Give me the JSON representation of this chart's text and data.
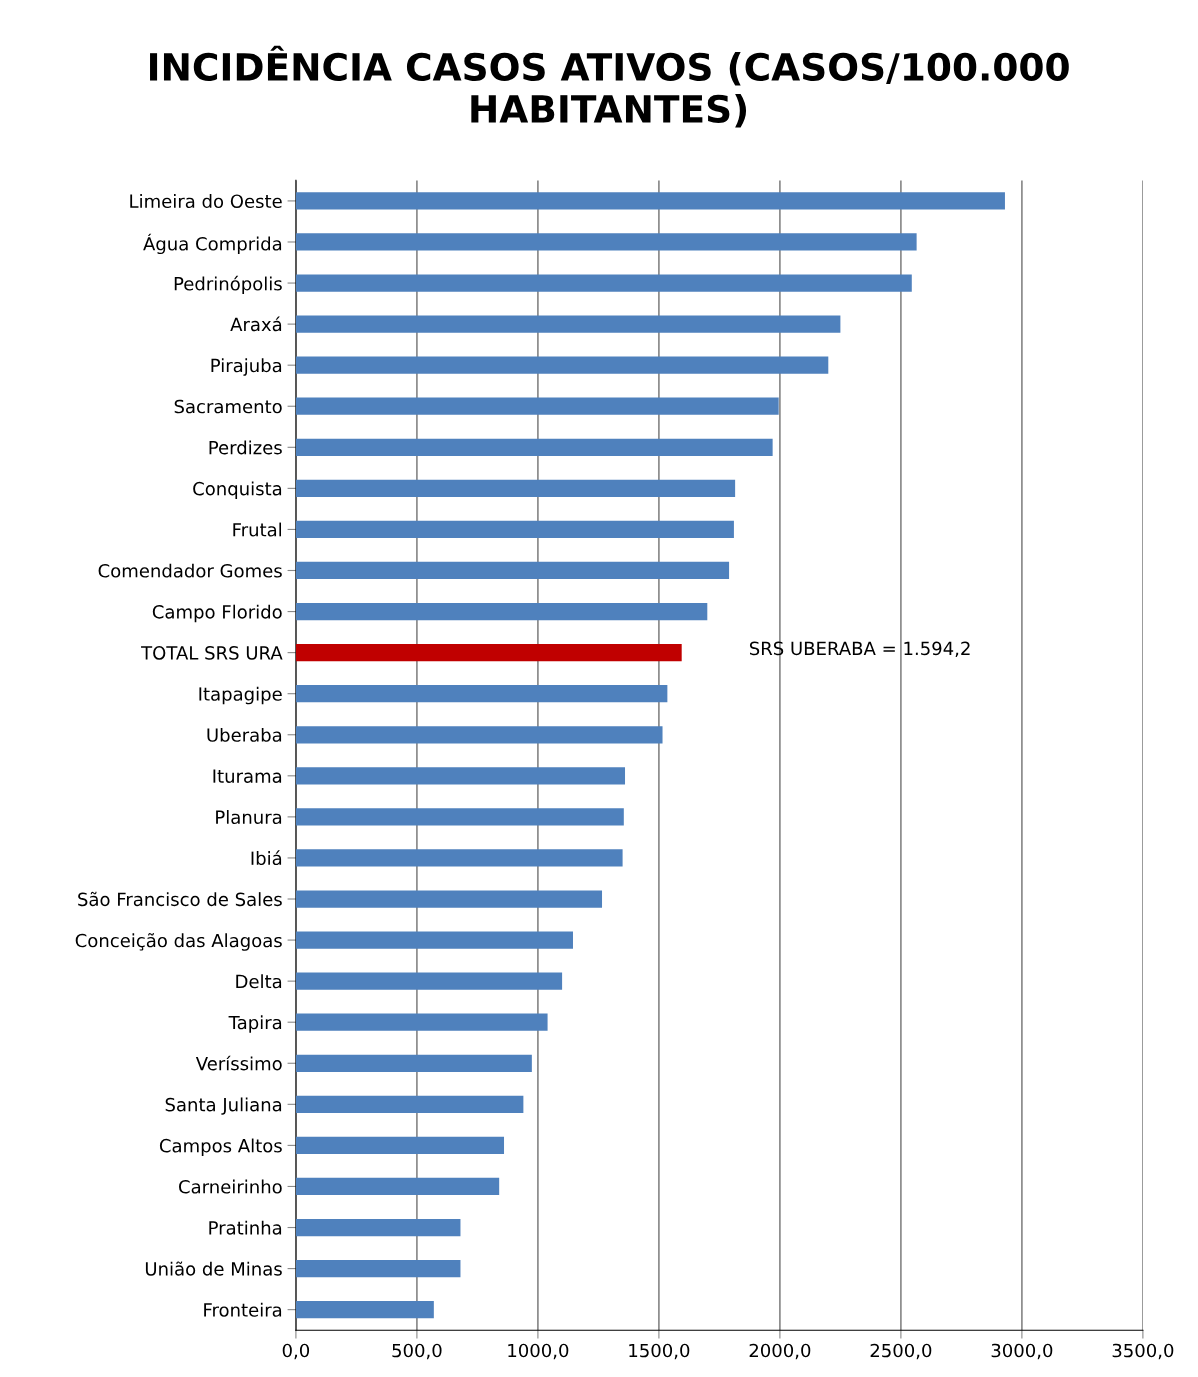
{
  "chart_data": {
    "type": "bar",
    "orientation": "horizontal",
    "title": "INCIDÊNCIA CASOS ATIVOS (CASOS/100.000 HABITANTES)",
    "categories": [
      "Limeira do Oeste",
      "Água Comprida",
      "Pedrinópolis",
      "Araxá",
      "Pirajuba",
      "Sacramento",
      "Perdizes",
      "Conquista",
      "Frutal",
      "Comendador Gomes",
      "Campo Florido",
      "TOTAL SRS URA",
      "Itapagipe",
      "Uberaba",
      "Iturama",
      "Planura",
      "Ibiá",
      "São Francisco de Sales",
      "Conceição das Alagoas",
      "Delta",
      "Tapira",
      "Veríssimo",
      "Santa Juliana",
      "Campos Altos",
      "Carneirinho",
      "Pratinha",
      "União de Minas",
      "Fronteira"
    ],
    "values": [
      2930,
      2565,
      2545,
      2250,
      2200,
      1995,
      1970,
      1815,
      1810,
      1790,
      1700,
      1594.2,
      1535,
      1515,
      1360,
      1355,
      1350,
      1265,
      1145,
      1100,
      1040,
      975,
      940,
      860,
      840,
      680,
      680,
      570
    ],
    "colors": [
      "#4f81bd",
      "#4f81bd",
      "#4f81bd",
      "#4f81bd",
      "#4f81bd",
      "#4f81bd",
      "#4f81bd",
      "#4f81bd",
      "#4f81bd",
      "#4f81bd",
      "#4f81bd",
      "#c00000",
      "#4f81bd",
      "#4f81bd",
      "#4f81bd",
      "#4f81bd",
      "#4f81bd",
      "#4f81bd",
      "#4f81bd",
      "#4f81bd",
      "#4f81bd",
      "#4f81bd",
      "#4f81bd",
      "#4f81bd",
      "#4f81bd",
      "#4f81bd",
      "#4f81bd",
      "#4f81bd"
    ],
    "xlim": [
      0,
      3500
    ],
    "xticks": [
      {
        "value": 0,
        "label": "0,0"
      },
      {
        "value": 500,
        "label": "500,0"
      },
      {
        "value": 1000,
        "label": "1000,0"
      },
      {
        "value": 1500,
        "label": "1500,0"
      },
      {
        "value": 2000,
        "label": "2000,0"
      },
      {
        "value": 2500,
        "label": "2500,0"
      },
      {
        "value": 3000,
        "label": "3000,0"
      },
      {
        "value": 3500,
        "label": "3500,0"
      }
    ],
    "grid": "x",
    "annotations": [
      "SRS UBERABA = 1.594,2"
    ]
  }
}
